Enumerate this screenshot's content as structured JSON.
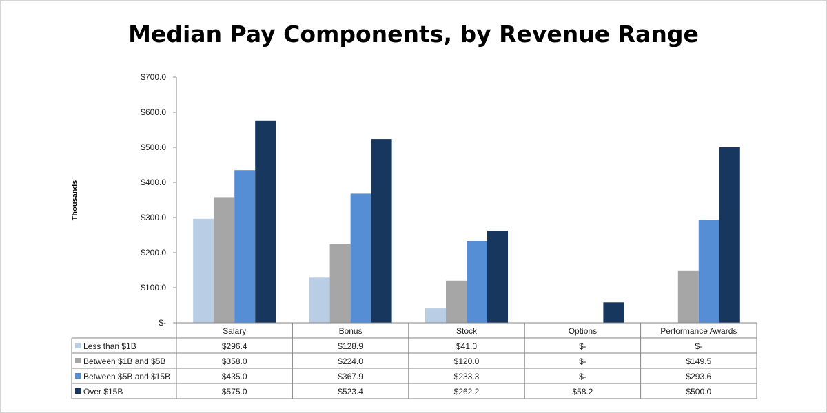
{
  "chart_data": {
    "type": "bar",
    "title": "Median Pay Components, by Revenue Range",
    "ylabel": "Thousands",
    "xlabel": "",
    "ylim": [
      0,
      700
    ],
    "yticks": [
      {
        "value": 0,
        "label": "$-"
      },
      {
        "value": 100,
        "label": "$100.0"
      },
      {
        "value": 200,
        "label": "$200.0"
      },
      {
        "value": 300,
        "label": "$300.0"
      },
      {
        "value": 400,
        "label": "$400.0"
      },
      {
        "value": 500,
        "label": "$500.0"
      },
      {
        "value": 600,
        "label": "$600.0"
      },
      {
        "value": 700,
        "label": "$700.0"
      }
    ],
    "categories": [
      "Salary",
      "Bonus",
      "Stock",
      "Options",
      "Performance Awards"
    ],
    "grid": false,
    "legend_placement": "data-table-left",
    "series": [
      {
        "name": "Less than $1B",
        "color": "#b9cde5",
        "values": [
          296.4,
          128.9,
          41.0,
          0,
          0
        ],
        "labels": [
          "$296.4",
          "$128.9",
          "$41.0",
          "$-",
          "$-"
        ]
      },
      {
        "name": "Between $1B and $5B",
        "color": "#a6a6a6",
        "values": [
          358.0,
          224.0,
          120.0,
          0,
          149.5
        ],
        "labels": [
          "$358.0",
          "$224.0",
          "$120.0",
          "$-",
          "$149.5"
        ]
      },
      {
        "name": "Between $5B and $15B",
        "color": "#558ed5",
        "values": [
          435.0,
          367.9,
          233.3,
          0,
          293.6
        ],
        "labels": [
          "$435.0",
          "$367.9",
          "$233.3",
          "$-",
          "$293.6"
        ]
      },
      {
        "name": "Over $15B",
        "color": "#17375e",
        "values": [
          575.0,
          523.4,
          262.2,
          58.2,
          500.0
        ],
        "labels": [
          "$575.0",
          "$523.4",
          "$262.2",
          "$58.2",
          "$500.0"
        ]
      }
    ]
  }
}
